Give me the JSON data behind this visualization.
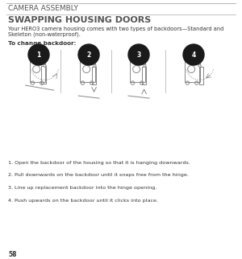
{
  "bg_color": "#ffffff",
  "page_title": "CAMERA ASSEMBLY",
  "section_title": "SWAPPING HOUSING DOORS",
  "body_text_1": "Your HERO3 camera housing comes with two types of backdoors—Standard and",
  "body_text_2": "Skeleton (non-waterproof).",
  "bold_label": "To change backdoor:",
  "steps": [
    "1. Open the backdoor of the housing so that it is hanging downwards.",
    "2. Pull downwards on the backdoor until it snaps free from the hinge.",
    "3. Line up replacement backdoor into the hinge opening.",
    "4. Push upwards on the backdoor until it clicks into place."
  ],
  "step_numbers": [
    "1",
    "2",
    "3",
    "4"
  ],
  "circle_color": "#1a1a1a",
  "text_color": "#333333",
  "title_color": "#555555",
  "section_title_color": "#555555",
  "line_color": "#aaaaaa",
  "drawing_color": "#888888",
  "page_number": "58",
  "figw": 3.0,
  "figh": 3.22
}
